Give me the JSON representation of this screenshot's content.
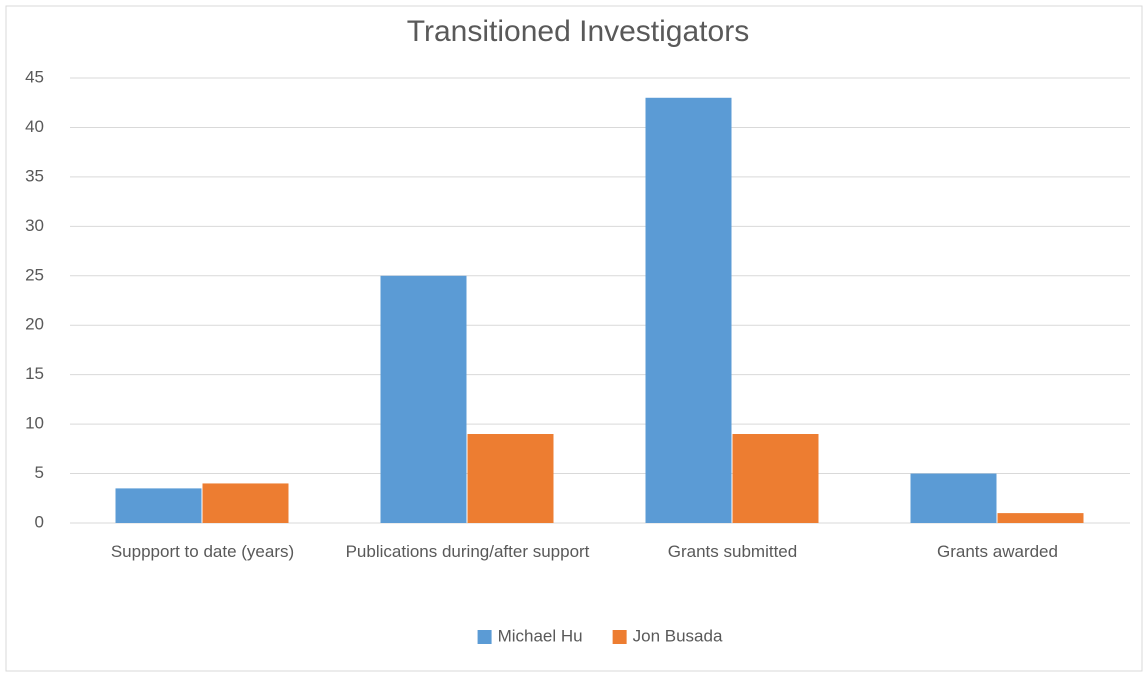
{
  "chart_data": {
    "type": "bar",
    "title": "Transitioned Investigators",
    "categories": [
      "Suppport to date (years)",
      "Publications during/after support",
      "Grants submitted",
      "Grants awarded"
    ],
    "series": [
      {
        "name": "Michael Hu",
        "color": "#5b9bd5",
        "values": [
          3.5,
          25,
          43,
          5
        ]
      },
      {
        "name": "Jon Busada",
        "color": "#ed7d31",
        "values": [
          4,
          9,
          9,
          1
        ]
      }
    ],
    "ylim": [
      0,
      45
    ],
    "yticks": [
      0,
      5,
      10,
      15,
      20,
      25,
      30,
      35,
      40,
      45
    ],
    "grid": true,
    "legend": "bottom"
  }
}
